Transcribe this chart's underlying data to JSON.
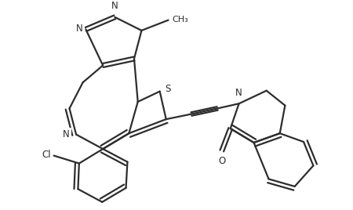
{
  "bg_color": "#ffffff",
  "line_color": "#2d2d2d",
  "line_width": 1.6,
  "font_size": 8.5,
  "figsize": [
    4.5,
    2.68
  ],
  "dpi": 100,
  "xlim": [
    0,
    9.0
  ],
  "ylim": [
    0,
    5.36
  ]
}
